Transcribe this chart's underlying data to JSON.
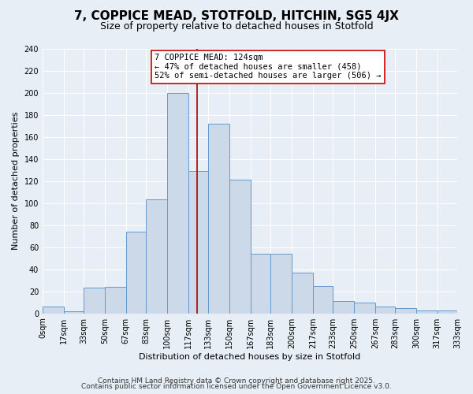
{
  "title": "7, COPPICE MEAD, STOTFOLD, HITCHIN, SG5 4JX",
  "subtitle": "Size of property relative to detached houses in Stotfold",
  "xlabel": "Distribution of detached houses by size in Stotfold",
  "ylabel": "Number of detached properties",
  "bar_color": "#ccd9e8",
  "bar_edge_color": "#6699cc",
  "bins": [
    0,
    17,
    33,
    50,
    67,
    83,
    100,
    117,
    133,
    150,
    167,
    183,
    200,
    217,
    233,
    250,
    267,
    283,
    300,
    317,
    333
  ],
  "bin_labels": [
    "0sqm",
    "17sqm",
    "33sqm",
    "50sqm",
    "67sqm",
    "83sqm",
    "100sqm",
    "117sqm",
    "133sqm",
    "150sqm",
    "167sqm",
    "183sqm",
    "200sqm",
    "217sqm",
    "233sqm",
    "250sqm",
    "267sqm",
    "283sqm",
    "300sqm",
    "317sqm",
    "333sqm"
  ],
  "counts": [
    6,
    2,
    23,
    24,
    74,
    103,
    200,
    129,
    172,
    121,
    54,
    54,
    37,
    25,
    11,
    10,
    6,
    5,
    3,
    3
  ],
  "property_size": 124,
  "annotation_line1": "7 COPPICE MEAD: 124sqm",
  "annotation_line2": "← 47% of detached houses are smaller (458)",
  "annotation_line3": "52% of semi-detached houses are larger (506) →",
  "vline_color": "#aa0000",
  "annotation_box_edge": "#cc0000",
  "annotation_box_face": "#ffffff",
  "footer1": "Contains HM Land Registry data © Crown copyright and database right 2025.",
  "footer2": "Contains public sector information licensed under the Open Government Licence v3.0.",
  "ylim": [
    0,
    240
  ],
  "yticks": [
    0,
    20,
    40,
    60,
    80,
    100,
    120,
    140,
    160,
    180,
    200,
    220,
    240
  ],
  "background_color": "#e8eef5",
  "grid_color": "#ffffff",
  "title_fontsize": 11,
  "subtitle_fontsize": 9,
  "axis_fontsize": 8,
  "tick_fontsize": 7,
  "footer_fontsize": 6.5
}
